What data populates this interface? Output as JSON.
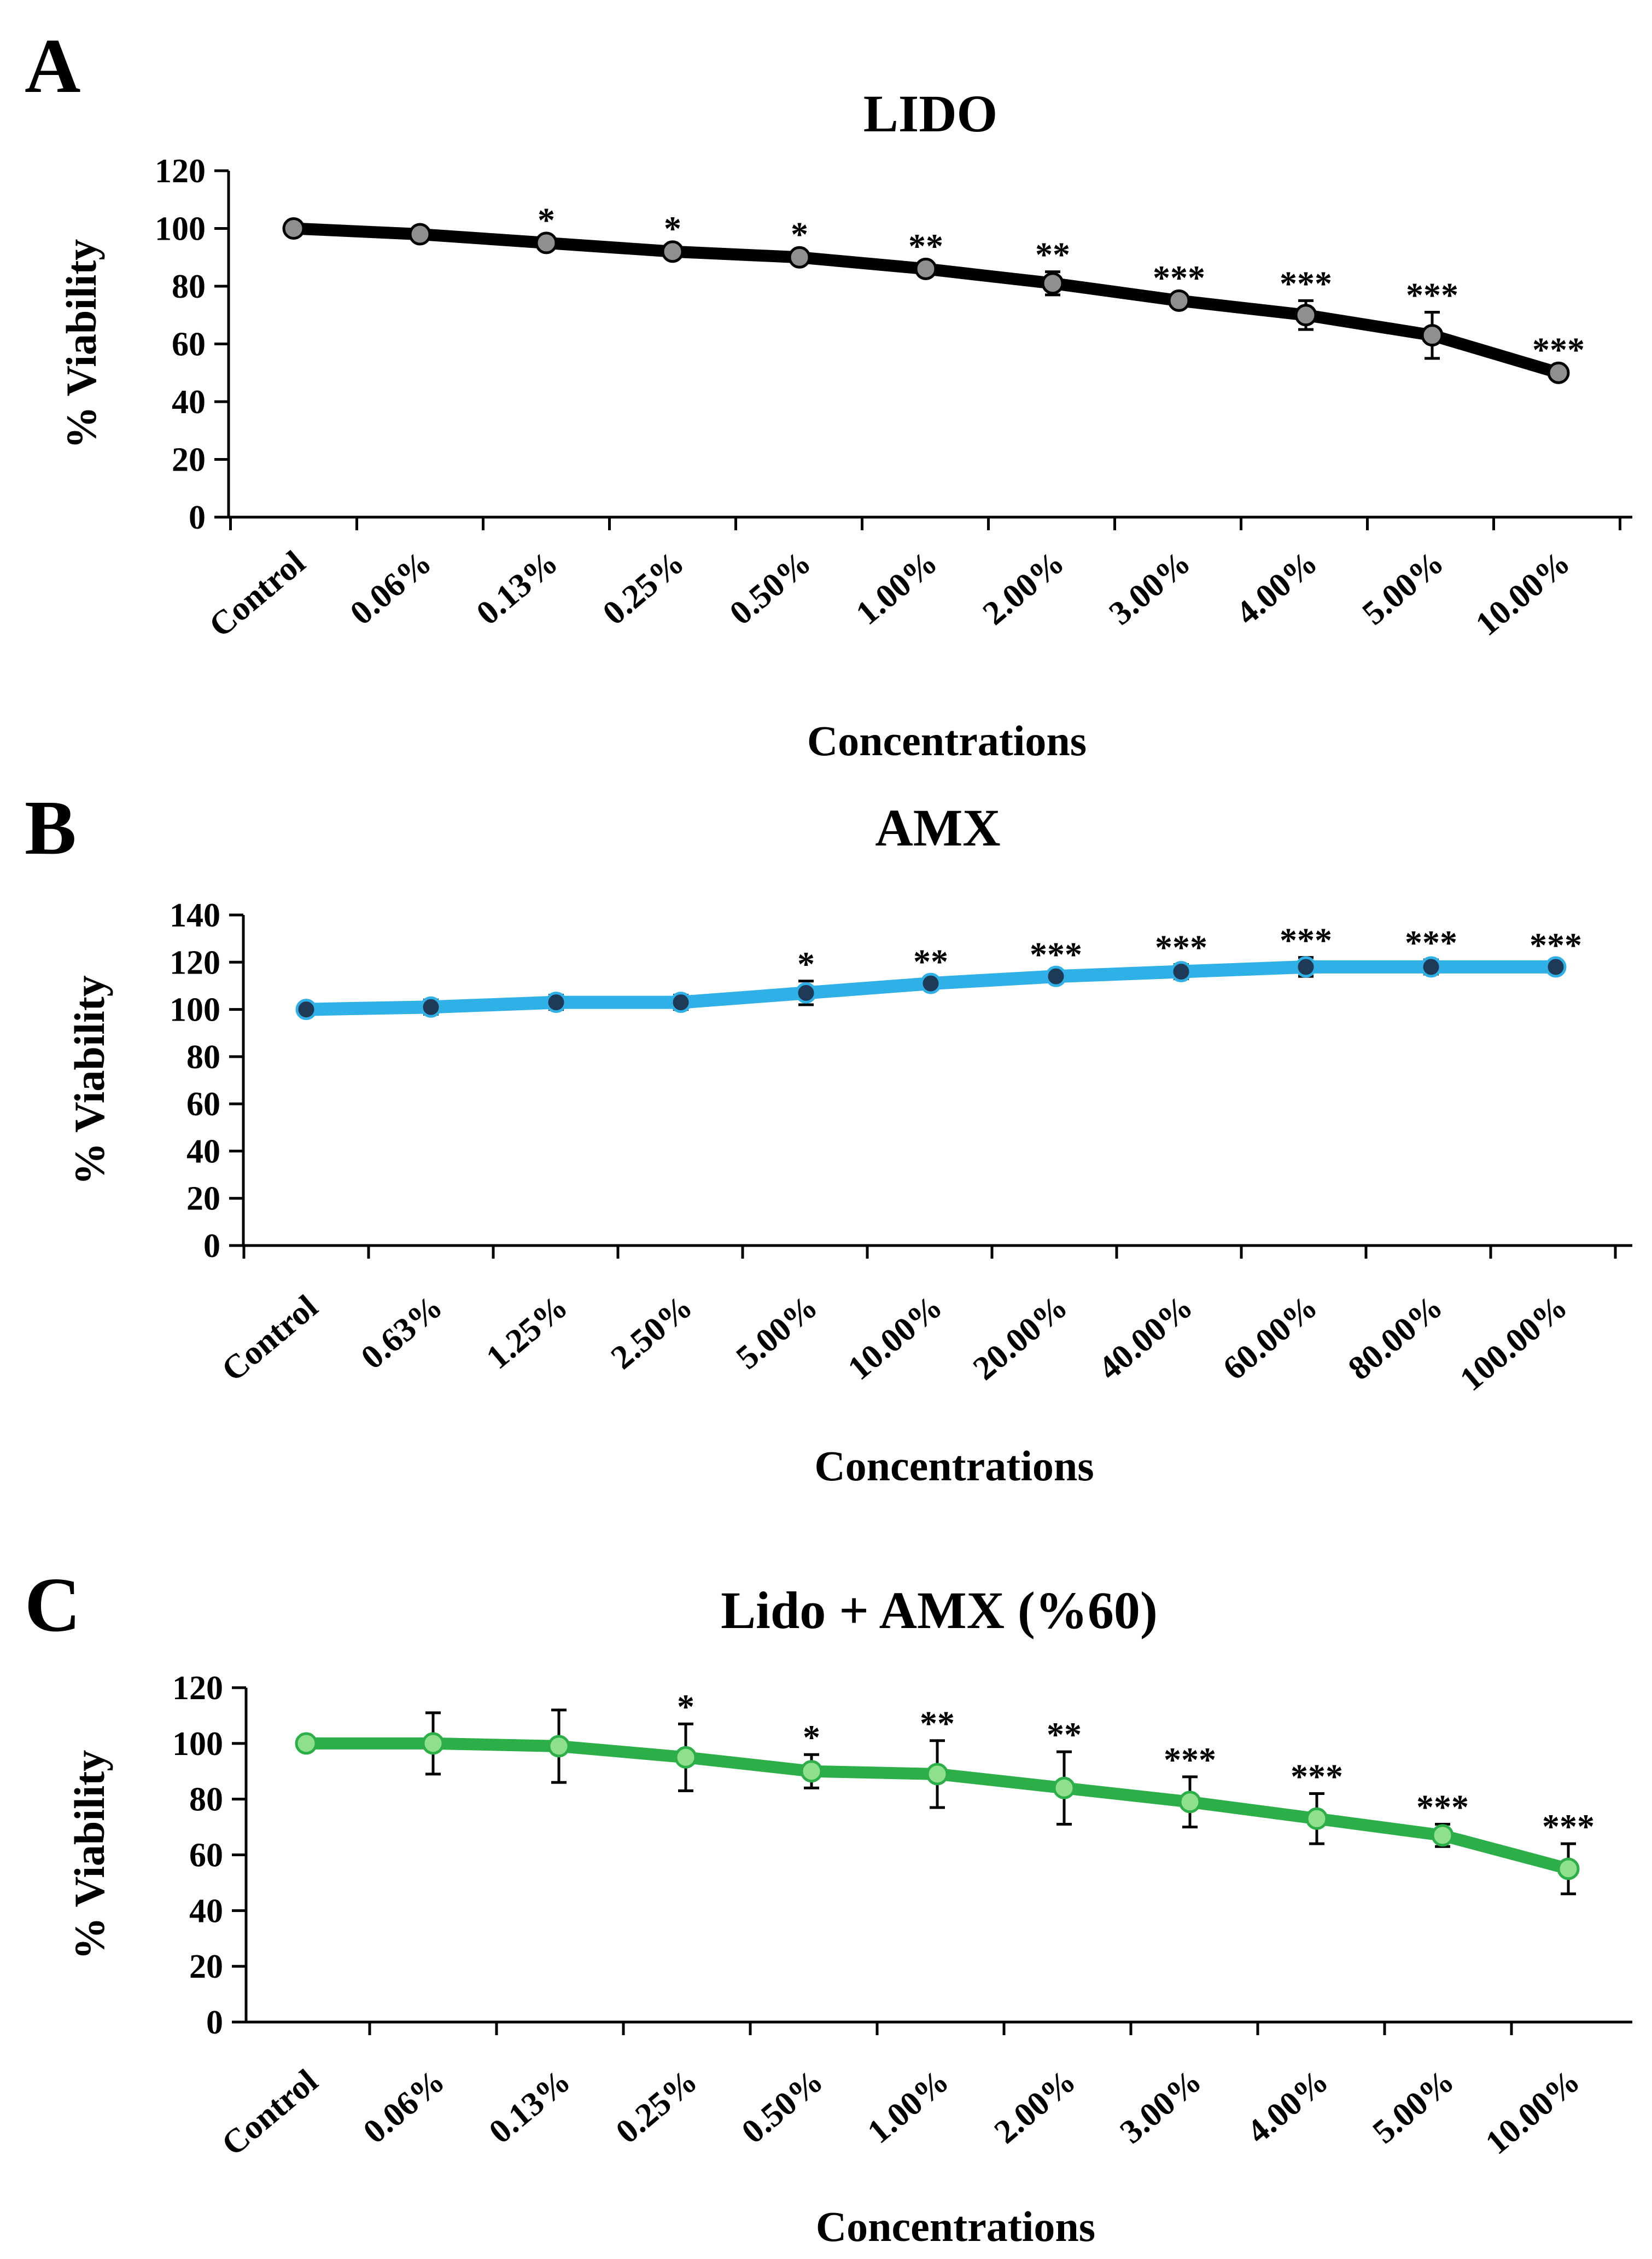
{
  "colors": {
    "lido_line": "#000000",
    "lido_marker": "#8f8f8f",
    "amx_line": "#2fb1e7",
    "amx_marker": "#1f3a57",
    "combo_line": "#2cae48",
    "combo_marker": "#8fe08c",
    "axis": "#000000",
    "error_bar": "#000000"
  },
  "chart_data": [
    {
      "type": "line",
      "panel_letter": "A",
      "title": "LIDO",
      "xlabel": "Concentrations",
      "ylabel": "% Viability",
      "ylim": [
        0,
        120
      ],
      "ytick_step": 20,
      "yticks": [
        "0",
        "20",
        "40",
        "60",
        "80",
        "100",
        "120"
      ],
      "categories": [
        "Control",
        "0.06%",
        "0.13%",
        "0.25%",
        "0.50%",
        "1.00%",
        "2.00%",
        "3.00%",
        "4.00%",
        "5.00%",
        "10.00%"
      ],
      "values": [
        100,
        98,
        95,
        92,
        90,
        86,
        81,
        75,
        70,
        63,
        50
      ],
      "errors": [
        1,
        2,
        2,
        2,
        2,
        2,
        4,
        2,
        5,
        8,
        2
      ],
      "significance": [
        "",
        "",
        "*",
        "*",
        "*",
        "**",
        "**",
        "***",
        "***",
        "***",
        "***"
      ],
      "grid": false,
      "legend": "none"
    },
    {
      "type": "line",
      "panel_letter": "B",
      "title": "AMX",
      "xlabel": "Concentrations",
      "ylabel": "% Viability",
      "ylim": [
        0,
        140
      ],
      "ytick_step": 20,
      "yticks": [
        "0",
        "20",
        "40",
        "60",
        "80",
        "100",
        "120",
        "140"
      ],
      "categories": [
        "Control",
        "0.63%",
        "1.25%",
        "2.50%",
        "5.00%",
        "10.00%",
        "20.00%",
        "40.00%",
        "60.00%",
        "80.00%",
        "100.00%"
      ],
      "values": [
        100,
        101,
        103,
        103,
        107,
        111,
        114,
        116,
        118,
        118,
        118
      ],
      "errors": [
        1,
        3,
        3,
        3,
        5,
        2,
        2,
        3,
        4,
        3,
        2
      ],
      "significance": [
        "",
        "",
        "",
        "",
        "*",
        "**",
        "***",
        "***",
        "***",
        "***",
        "***"
      ],
      "grid": false,
      "legend": "none"
    },
    {
      "type": "line",
      "panel_letter": "C",
      "title": "Lido + AMX (%60)",
      "xlabel": "Concentrations",
      "ylabel": "% Viability",
      "ylim": [
        0,
        120
      ],
      "ytick_step": 20,
      "yticks": [
        "0",
        "20",
        "40",
        "60",
        "80",
        "100",
        "120"
      ],
      "categories": [
        "Control",
        "0.06%",
        "0.13%",
        "0.25%",
        "0.50%",
        "1.00%",
        "2.00%",
        "3.00%",
        "4.00%",
        "5.00%",
        "10.00%"
      ],
      "values": [
        100,
        100,
        99,
        95,
        90,
        89,
        84,
        79,
        73,
        67,
        55
      ],
      "errors": [
        1,
        11,
        13,
        12,
        6,
        12,
        13,
        9,
        9,
        4,
        9
      ],
      "significance": [
        "",
        "",
        "",
        "*",
        "*",
        "**",
        "**",
        "***",
        "***",
        "***",
        "***"
      ],
      "grid": false,
      "legend": "none"
    }
  ]
}
